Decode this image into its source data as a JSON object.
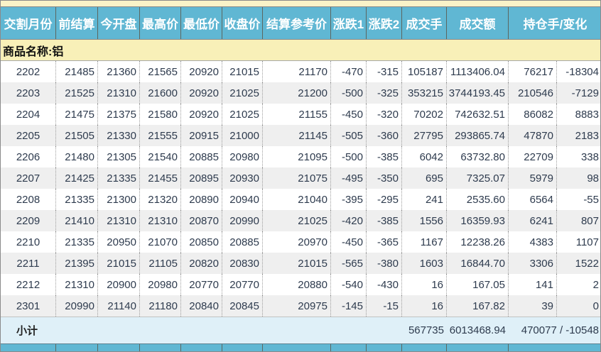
{
  "table": {
    "headers": [
      "交割月份",
      "前结算",
      "今开盘",
      "最高价",
      "最低价",
      "收盘价",
      "结算参考价",
      "涨跌1",
      "涨跌2",
      "成交手",
      "成交额",
      "持仓手/变化"
    ],
    "commodity_label": "商品名称:铝",
    "rows": [
      [
        "2202",
        "21485",
        "21360",
        "21565",
        "20920",
        "21015",
        "21170",
        "-470",
        "-315",
        "105187",
        "1113406.04",
        "76217",
        "-18304"
      ],
      [
        "2203",
        "21525",
        "21310",
        "21600",
        "20920",
        "21025",
        "21200",
        "-500",
        "-325",
        "353215",
        "3744193.45",
        "210546",
        "-7129"
      ],
      [
        "2204",
        "21475",
        "21375",
        "21580",
        "20920",
        "21025",
        "21155",
        "-450",
        "-320",
        "70202",
        "742632.51",
        "86082",
        "8883"
      ],
      [
        "2205",
        "21505",
        "21330",
        "21555",
        "20915",
        "21000",
        "21145",
        "-505",
        "-360",
        "27795",
        "293865.74",
        "47870",
        "2183"
      ],
      [
        "2206",
        "21480",
        "21305",
        "21540",
        "20885",
        "20980",
        "21095",
        "-500",
        "-385",
        "6042",
        "63732.80",
        "22709",
        "338"
      ],
      [
        "2207",
        "21425",
        "21335",
        "21455",
        "20895",
        "20930",
        "21075",
        "-495",
        "-350",
        "695",
        "7325.07",
        "5979",
        "98"
      ],
      [
        "2208",
        "21335",
        "21300",
        "21320",
        "20890",
        "20940",
        "21040",
        "-395",
        "-295",
        "241",
        "2535.60",
        "6564",
        "-55"
      ],
      [
        "2209",
        "21410",
        "21310",
        "21310",
        "20870",
        "20990",
        "21025",
        "-420",
        "-385",
        "1556",
        "16359.93",
        "6241",
        "807"
      ],
      [
        "2210",
        "21335",
        "20950",
        "21070",
        "20850",
        "20885",
        "20970",
        "-450",
        "-365",
        "1167",
        "12238.26",
        "4383",
        "1107"
      ],
      [
        "2211",
        "21395",
        "21015",
        "21105",
        "20820",
        "20830",
        "21015",
        "-565",
        "-380",
        "1603",
        "16844.70",
        "3306",
        "1522"
      ],
      [
        "2212",
        "21310",
        "20900",
        "20980",
        "20770",
        "20770",
        "20880",
        "-540",
        "-430",
        "16",
        "167.05",
        "141",
        "2"
      ],
      [
        "2301",
        "20990",
        "21140",
        "21180",
        "20840",
        "20845",
        "20975",
        "-145",
        "-15",
        "16",
        "167.82",
        "39",
        "0"
      ]
    ],
    "subtotal": {
      "label": "小计",
      "volume": "567735",
      "turnover": "6013468.94",
      "open_interest_change": "470077 / -10548"
    }
  },
  "colors": {
    "header_bg": "#60b7d3",
    "commodity_bg": "#f8f0b8",
    "subtotal_bg": "#dff0f8",
    "alt_row_bg": "#efefef",
    "top_strip_bg": "#faf3c8",
    "data_text": "#2e3b4e",
    "header_text": "#ffffff"
  }
}
